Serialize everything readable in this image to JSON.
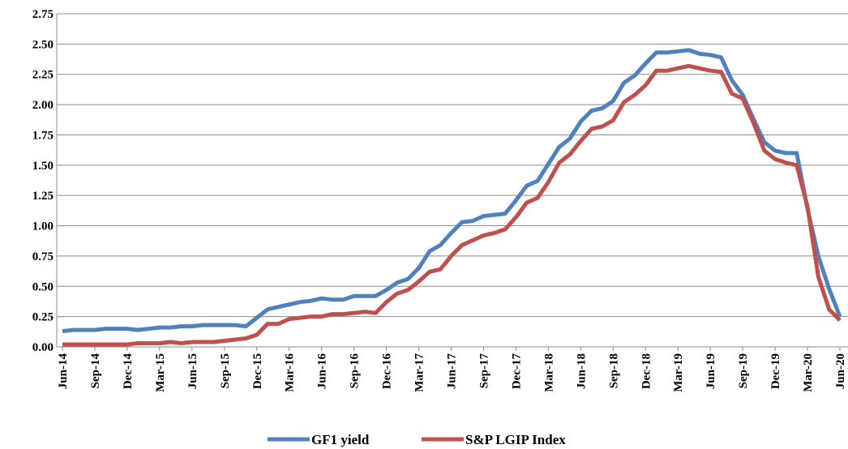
{
  "chart_data": {
    "type": "line",
    "categories": [
      "Jun-14",
      null,
      null,
      "Sep-14",
      null,
      null,
      "Dec-14",
      null,
      null,
      "Mar-15",
      null,
      null,
      "Jun-15",
      null,
      null,
      "Sep-15",
      null,
      null,
      "Dec-15",
      null,
      null,
      "Mar-16",
      null,
      null,
      "Jun-16",
      null,
      null,
      "Sep-16",
      null,
      null,
      "Dec-16",
      null,
      null,
      "Mar-17",
      null,
      null,
      "Jun-17",
      null,
      null,
      "Sep-17",
      null,
      null,
      "Dec-17",
      null,
      null,
      "Mar-18",
      null,
      null,
      "Jun-18",
      null,
      null,
      "Sep-18",
      null,
      null,
      "Dec-18",
      null,
      null,
      "Mar-19",
      null,
      null,
      "Jun-19",
      null,
      null,
      "Sep-19",
      null,
      null,
      "Dec-19",
      null,
      null,
      "Mar-20",
      null,
      null,
      "Jun-20"
    ],
    "series": [
      {
        "name": "GF1 yield",
        "color": "#4f81bd",
        "values": [
          0.13,
          0.14,
          0.14,
          0.14,
          0.15,
          0.15,
          0.15,
          0.14,
          0.15,
          0.16,
          0.16,
          0.17,
          0.17,
          0.18,
          0.18,
          0.18,
          0.18,
          0.17,
          0.24,
          0.31,
          0.33,
          0.35,
          0.37,
          0.38,
          0.4,
          0.39,
          0.39,
          0.42,
          0.42,
          0.42,
          0.47,
          0.53,
          0.56,
          0.65,
          0.79,
          0.84,
          0.94,
          1.03,
          1.04,
          1.08,
          1.09,
          1.1,
          1.21,
          1.33,
          1.37,
          1.51,
          1.65,
          1.72,
          1.86,
          1.95,
          1.97,
          2.03,
          2.18,
          2.24,
          2.34,
          2.43,
          2.43,
          2.44,
          2.45,
          2.42,
          2.41,
          2.39,
          2.2,
          2.08,
          1.88,
          1.69,
          1.62,
          1.6,
          1.6,
          1.14,
          0.75,
          0.48,
          0.25
        ]
      },
      {
        "name": "S&P LGIP Index",
        "color": "#c0504d",
        "values": [
          0.02,
          0.02,
          0.02,
          0.02,
          0.02,
          0.02,
          0.02,
          0.03,
          0.03,
          0.03,
          0.04,
          0.03,
          0.04,
          0.04,
          0.04,
          0.05,
          0.06,
          0.07,
          0.1,
          0.19,
          0.19,
          0.23,
          0.24,
          0.25,
          0.25,
          0.27,
          0.27,
          0.28,
          0.29,
          0.28,
          0.37,
          0.44,
          0.47,
          0.54,
          0.62,
          0.64,
          0.75,
          0.84,
          0.88,
          0.92,
          0.94,
          0.97,
          1.07,
          1.19,
          1.23,
          1.36,
          1.52,
          1.59,
          1.7,
          1.8,
          1.82,
          1.87,
          2.02,
          2.08,
          2.16,
          2.28,
          2.28,
          2.3,
          2.32,
          2.3,
          2.28,
          2.27,
          2.09,
          2.05,
          1.85,
          1.62,
          1.55,
          1.52,
          1.5,
          1.16,
          0.58,
          0.31,
          0.22
        ]
      }
    ],
    "ylim": [
      0,
      2.75
    ],
    "yticks": [
      {
        "value": 0,
        "label": "0.00"
      },
      {
        "value": 0.25,
        "label": "0.25"
      },
      {
        "value": 0.5,
        "label": "0.50"
      },
      {
        "value": 0.75,
        "label": "0.75"
      },
      {
        "value": 1,
        "label": "1.00"
      },
      {
        "value": 1.25,
        "label": "1.25"
      },
      {
        "value": 1.5,
        "label": "1.50"
      },
      {
        "value": 1.75,
        "label": "1.75"
      },
      {
        "value": 2,
        "label": "2.00"
      },
      {
        "value": 2.25,
        "label": "2.25"
      },
      {
        "value": 2.5,
        "label": "2.50"
      },
      {
        "value": 2.75,
        "label": "2.75"
      }
    ],
    "grid": true,
    "legend": "bottom"
  }
}
